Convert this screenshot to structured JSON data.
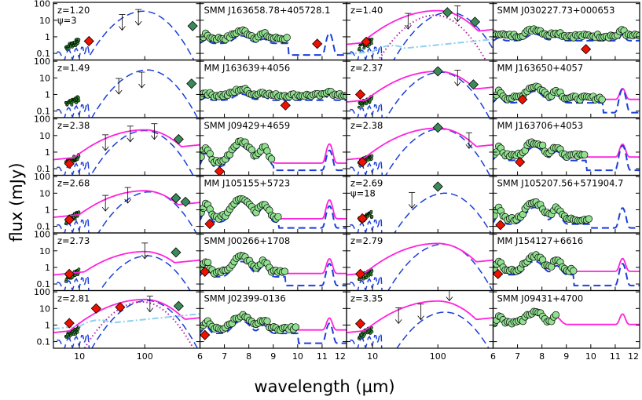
{
  "figure": {
    "ylabel": "flux (mJy)",
    "xlabel": "wavelength (µm)"
  },
  "chart_data": {
    "type": "scatter",
    "layout": "6 rows x 4 columns of log-log panels; columns 1 and 3 show full SEDs (log wavelength), columns 2 and 4 show the 6-12 µm IRS spectra (linear wavelength)",
    "y_scale": "log",
    "y_range": [
      0.04,
      120
    ],
    "y_ticks": [
      0.1,
      1,
      10,
      100
    ],
    "y_tick_labels": [
      "0.1",
      "1",
      "10",
      "100"
    ],
    "sed_x_scale": "log",
    "sed_x_range": [
      4,
      700
    ],
    "sed_x_ticks": [
      10,
      100
    ],
    "sed_x_tick_labels": [
      "10",
      "100"
    ],
    "spec_x_scale": "linear",
    "spec_x_range": [
      6,
      12
    ],
    "spec_x_ticks": [
      6,
      7,
      8,
      9,
      10,
      11,
      12
    ],
    "spec_x_tick_labels": [
      "6",
      "7",
      "8",
      "9",
      "10",
      "11",
      "12"
    ],
    "series_styles": [
      {
        "key": "starburst",
        "line": "solid",
        "color": "#ff22dd"
      },
      {
        "key": "agn",
        "line": "dashed",
        "color": "#1b3fd9"
      },
      {
        "key": "extra_dotted",
        "line": "dotted",
        "color": "#b020b0"
      },
      {
        "key": "extra_dashdot",
        "line": "dash-dot",
        "color": "#8fd0ee"
      },
      {
        "key": "photometry",
        "marker": "diamond",
        "color": "#ee1100"
      },
      {
        "key": "submm",
        "marker": "diamond",
        "color": "#3c8a5a"
      },
      {
        "key": "upper_limits",
        "marker": "arrow-down",
        "color": "#000000"
      },
      {
        "key": "irs_spectrum",
        "marker": "open-circle",
        "color": "#90e090"
      }
    ],
    "panels": [
      {
        "row": 1,
        "col": 1,
        "kind": "sed",
        "label": "z=1.20",
        "label2": "ψ=3",
        "red": [
          [
            14,
            0.55
          ]
        ],
        "green": [
          [
            540,
            4.5
          ]
        ],
        "limits": [
          [
            45,
            6
          ],
          [
            80,
            12
          ]
        ],
        "blue_peak": [
          95,
          35
        ],
        "magenta_peak": null,
        "dotted": null,
        "dashdot": null
      },
      {
        "row": 1,
        "col": 2,
        "kind": "spec",
        "label": "SMM J163658.78+405728.1",
        "red": [
          [
            10.8,
            0.38
          ]
        ],
        "circle_level": 0.9,
        "circle_end": 9.6,
        "pah": [
          1.5,
          0.5
        ],
        "magenta": false,
        "blue": true,
        "tail": 0.8
      },
      {
        "row": 1,
        "col": 3,
        "kind": "sed",
        "label": "z=1.40",
        "red": [
          [
            8,
            0.5
          ]
        ],
        "green": [
          [
            140,
            30
          ],
          [
            370,
            8
          ]
        ],
        "limits": [
          [
            35,
            7
          ],
          [
            200,
            20
          ]
        ],
        "blue_peak": [
          150,
          30
        ],
        "magenta_peak": [
          100,
          38
        ],
        "dotted": [
          90,
          20
        ],
        "dashdot": [
          20,
          0.3
        ]
      },
      {
        "row": 1,
        "col": 4,
        "kind": "spec",
        "label": "SMM J030227.73+000653",
        "red": [
          [
            9.8,
            0.18
          ]
        ],
        "circle_level": 1.3,
        "circle_end": 12,
        "pah": [
          1.8,
          0.55
        ],
        "magenta": true,
        "blue": true,
        "tail": 1.6
      },
      {
        "row": 2,
        "col": 1,
        "kind": "sed",
        "label": "z=1.49",
        "red": [],
        "green": [
          [
            520,
            4.5
          ]
        ],
        "limits": [
          [
            40,
            2.5
          ],
          [
            90,
            6
          ]
        ],
        "blue_peak": [
          110,
          30
        ],
        "magenta_peak": null,
        "dotted": null,
        "dashdot": null
      },
      {
        "row": 2,
        "col": 2,
        "kind": "spec",
        "label": "MM J163639+4056",
        "red": [
          [
            9.5,
            0.22
          ]
        ],
        "circle_level": 1.0,
        "circle_end": 12,
        "pah": [
          1.2,
          0.6
        ],
        "magenta": false,
        "blue": true,
        "tail": 2.2
      },
      {
        "row": 2,
        "col": 3,
        "kind": "sed",
        "label": "z=2.37",
        "red": [
          [
            6.5,
            1.0
          ]
        ],
        "green": [
          [
            100,
            25
          ],
          [
            350,
            4
          ]
        ],
        "limits": [
          [
            200,
            8
          ]
        ],
        "blue_peak": [
          110,
          22
        ],
        "magenta_peak": [
          100,
          25
        ],
        "dotted": null,
        "dashdot": null
      },
      {
        "row": 2,
        "col": 4,
        "kind": "spec",
        "label": "MM J163650+4057",
        "red": [
          [
            7.2,
            0.5
          ]
        ],
        "circle_level": 0.7,
        "circle_end": 10.5,
        "pah": [
          2.5,
          0.55
        ],
        "magenta": true,
        "blue": true,
        "tail": 1.0
      },
      {
        "row": 3,
        "col": 1,
        "kind": "sed",
        "label": "z=2.38",
        "red": [
          [
            7,
            0.2
          ]
        ],
        "green": [
          [
            330,
            6
          ]
        ],
        "limits": [
          [
            25,
            3
          ],
          [
            60,
            10
          ],
          [
            140,
            14
          ]
        ],
        "blue_peak": [
          100,
          20
        ],
        "magenta_peak": [
          100,
          22
        ],
        "dotted": null,
        "dashdot": null
      },
      {
        "row": 3,
        "col": 2,
        "kind": "spec",
        "label": "SMM J09429+4659",
        "red": [
          [
            6.8,
            0.07
          ]
        ],
        "circle_level": 0.3,
        "circle_end": 9.0,
        "pah": [
          4,
          0.5
        ],
        "magenta": true,
        "blue": true,
        "tail": 0.6
      },
      {
        "row": 3,
        "col": 3,
        "kind": "sed",
        "label": "z=2.38",
        "red": [
          [
            7,
            0.25
          ]
        ],
        "green": [
          [
            100,
            30
          ]
        ],
        "limits": [
          [
            300,
            4
          ]
        ],
        "blue_peak": [
          110,
          25
        ],
        "magenta_peak": [
          100,
          28
        ],
        "dotted": null,
        "dashdot": null
      },
      {
        "row": 3,
        "col": 4,
        "kind": "spec",
        "label": "MM  J163706+4053",
        "red": [
          [
            7.1,
            0.25
          ]
        ],
        "circle_level": 0.7,
        "circle_end": 9.8,
        "pah": [
          3.5,
          0.5
        ],
        "magenta": true,
        "blue": true,
        "tail": 1.2
      },
      {
        "row": 4,
        "col": 1,
        "kind": "sed",
        "label": "z=2.68",
        "red": [
          [
            7,
            0.25
          ]
        ],
        "green": [
          [
            300,
            5
          ],
          [
            420,
            3
          ]
        ],
        "limits": [
          [
            25,
            2
          ],
          [
            55,
            6
          ]
        ],
        "blue_peak": [
          120,
          12
        ],
        "magenta_peak": [
          100,
          14
        ],
        "dotted": null,
        "dashdot": null
      },
      {
        "row": 4,
        "col": 2,
        "kind": "spec",
        "label": "MM  J105155+5723",
        "red": [
          [
            6.4,
            0.14
          ]
        ],
        "circle_level": 0.4,
        "circle_end": 9.2,
        "pah": [
          5,
          0.5
        ],
        "magenta": true,
        "blue": true,
        "tail": 0.8
      },
      {
        "row": 4,
        "col": 3,
        "kind": "sed",
        "label": "z=2.69",
        "label2": "ψ=18",
        "red": [
          [
            7,
            0.3
          ]
        ],
        "green": [
          [
            100,
            25
          ]
        ],
        "limits": [
          [
            40,
            3
          ]
        ],
        "blue_peak": [
          130,
          10
        ],
        "magenta_peak": null,
        "dotted": null,
        "dashdot": null
      },
      {
        "row": 4,
        "col": 4,
        "kind": "spec",
        "label": "SMM J105207.56+571904.7",
        "red": [
          [
            6.3,
            0.12
          ]
        ],
        "circle_level": 0.3,
        "circle_end": 10.0,
        "pah": [
          2.5,
          0.4
        ],
        "magenta": false,
        "blue": true,
        "tail": 0.6
      },
      {
        "row": 5,
        "col": 1,
        "kind": "sed",
        "label": "z=2.73",
        "red": [
          [
            7,
            0.4
          ]
        ],
        "green": [
          [
            300,
            8
          ]
        ],
        "limits": [
          [
            100,
            8
          ]
        ],
        "blue_peak": [
          110,
          5
        ],
        "magenta_peak": [
          100,
          9
        ],
        "dotted": null,
        "dashdot": null
      },
      {
        "row": 5,
        "col": 2,
        "kind": "spec",
        "label": "SMM J00266+1708",
        "red": [
          [
            6.2,
            0.55
          ]
        ],
        "circle_level": 0.6,
        "circle_end": 9.5,
        "pah": [
          4,
          0.5
        ],
        "magenta": true,
        "blue": true,
        "tail": 0.8
      },
      {
        "row": 5,
        "col": 3,
        "kind": "sed",
        "label": "z=2.79",
        "red": [
          [
            6.5,
            0.4
          ]
        ],
        "green": [],
        "limits": [],
        "blue_peak": [
          120,
          25
        ],
        "magenta_peak": [
          100,
          28
        ],
        "dotted": null,
        "dashdot": null
      },
      {
        "row": 5,
        "col": 4,
        "kind": "spec",
        "label": "MM J154127+6616",
        "red": [
          [
            6.2,
            0.4
          ]
        ],
        "circle_level": 0.8,
        "circle_end": 9.3,
        "pah": [
          4,
          0.5
        ],
        "magenta": true,
        "blue": true,
        "tail": 0.8
      },
      {
        "row": 6,
        "col": 1,
        "kind": "sed",
        "label": "z=2.81",
        "red": [
          [
            7,
            1.3
          ],
          [
            18,
            10
          ],
          [
            42,
            12
          ]
        ],
        "green": [
          [
            330,
            14
          ]
        ],
        "limits": [
          [
            120,
            15
          ]
        ],
        "blue_peak": [
          110,
          30
        ],
        "magenta_peak": [
          100,
          35
        ],
        "dotted": [
          90,
          25
        ],
        "dashdot": [
          20,
          2
        ]
      },
      {
        "row": 6,
        "col": 2,
        "kind": "spec",
        "label": "SMM J02399-0136",
        "red": [
          [
            6.2,
            0.25
          ]
        ],
        "circle_level": 0.7,
        "circle_end": 10.0,
        "pah": [
          3,
          0.5
        ],
        "magenta": true,
        "blue": true,
        "tail": 0.6
      },
      {
        "row": 6,
        "col": 3,
        "kind": "sed",
        "label": "z=3.35",
        "red": [
          [
            6.5,
            1.2
          ]
        ],
        "green": [],
        "limits": [
          [
            25,
            3
          ],
          [
            55,
            5
          ],
          [
            150,
            70
          ]
        ],
        "blue_peak": [
          130,
          6
        ],
        "magenta_peak": [
          100,
          28
        ],
        "dotted": null,
        "dashdot": null
      },
      {
        "row": 6,
        "col": 4,
        "kind": "spec",
        "label": "SMM J09431+4700",
        "red": [],
        "circle_level": 1.5,
        "circle_end": 8.6,
        "pah": [
          5,
          0.4
        ],
        "magenta": true,
        "blue": false,
        "tail": 0.8
      }
    ]
  }
}
